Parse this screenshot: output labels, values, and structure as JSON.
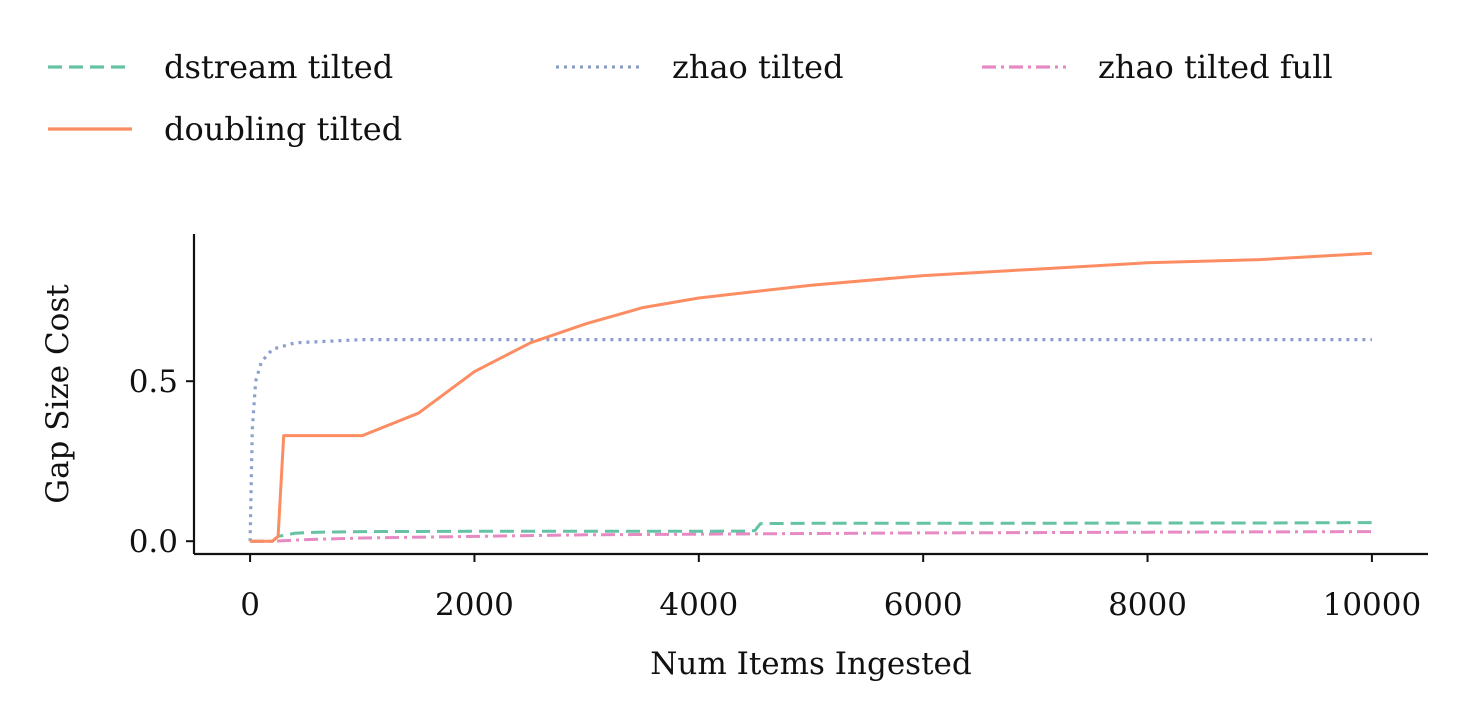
{
  "chart_data": {
    "type": "line",
    "title": "",
    "xlabel": "Num Items Ingested",
    "ylabel": "Gap Size Cost",
    "xlim": [
      -500,
      10500
    ],
    "ylim": [
      -0.04,
      0.96
    ],
    "xticks": [
      0,
      2000,
      4000,
      6000,
      8000,
      10000
    ],
    "xtick_labels": [
      "0",
      "2000",
      "4000",
      "6000",
      "8000",
      "10000"
    ],
    "yticks": [
      0.0,
      0.5
    ],
    "ytick_labels": [
      "0.0",
      "0.5"
    ],
    "grid": false,
    "legend_position": "top, outside plot, 3 columns",
    "series": [
      {
        "name": "dstream tilted",
        "color": "#66c2a5",
        "linestyle": "dashed",
        "x": [
          0,
          200,
          250,
          400,
          600,
          1000,
          2000,
          3000,
          4000,
          4400,
          4500,
          4550,
          5000,
          6000,
          7000,
          8000,
          9000,
          10000
        ],
        "y": [
          0.0,
          0.0,
          0.015,
          0.025,
          0.028,
          0.03,
          0.031,
          0.031,
          0.031,
          0.032,
          0.033,
          0.055,
          0.056,
          0.056,
          0.056,
          0.057,
          0.057,
          0.058
        ]
      },
      {
        "name": "doubling tilted",
        "color": "#fc8d62",
        "linestyle": "solid",
        "x": [
          0,
          200,
          250,
          300,
          500,
          1000,
          1500,
          2000,
          2500,
          3000,
          3500,
          4000,
          5000,
          6000,
          7000,
          8000,
          9000,
          10000
        ],
        "y": [
          0.0,
          0.0,
          0.015,
          0.33,
          0.33,
          0.33,
          0.4,
          0.53,
          0.62,
          0.68,
          0.73,
          0.76,
          0.8,
          0.83,
          0.85,
          0.87,
          0.88,
          0.9
        ]
      },
      {
        "name": "zhao tilted",
        "color": "#8da0cb",
        "linestyle": "dotted",
        "x": [
          0,
          20,
          50,
          100,
          200,
          400,
          1000,
          2000,
          3000,
          4000,
          5000,
          6000,
          7000,
          8000,
          9000,
          10000
        ],
        "y": [
          0.0,
          0.35,
          0.5,
          0.56,
          0.6,
          0.62,
          0.63,
          0.63,
          0.63,
          0.63,
          0.63,
          0.63,
          0.63,
          0.63,
          0.63,
          0.63
        ]
      },
      {
        "name": "zhao tilted full",
        "color": "#e78ac3",
        "linestyle": "dashdot",
        "x": [
          0,
          200,
          500,
          1000,
          2000,
          3000,
          4000,
          5000,
          6000,
          7000,
          8000,
          9000,
          10000
        ],
        "y": [
          0.0,
          0.0,
          0.005,
          0.01,
          0.015,
          0.02,
          0.022,
          0.024,
          0.026,
          0.027,
          0.028,
          0.029,
          0.03
        ]
      }
    ],
    "legend": [
      {
        "label": "dstream tilted",
        "color": "#66c2a5",
        "linestyle": "dashed"
      },
      {
        "label": "zhao tilted",
        "color": "#8da0cb",
        "linestyle": "dotted"
      },
      {
        "label": "zhao tilted full",
        "color": "#e78ac3",
        "linestyle": "dashdot"
      },
      {
        "label": "doubling tilted",
        "color": "#fc8d62",
        "linestyle": "solid"
      }
    ]
  }
}
